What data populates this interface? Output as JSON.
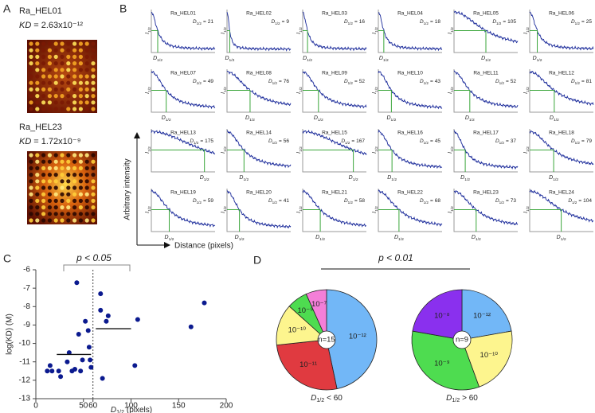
{
  "panel_a": {
    "letter": "A",
    "images": [
      {
        "name": "Ra_HEL01",
        "kd_symbol": "KD",
        "kd_value": "= 2.63x10⁻¹²"
      },
      {
        "name": "Ra_HEL23",
        "kd_symbol": "KD",
        "kd_value": "= 1.72x10⁻⁹"
      }
    ]
  },
  "panel_b": {
    "letter": "B",
    "ylabel": "Arbitrary intensity",
    "xlabel": "Distance (pixels)",
    "i_symbol": "I",
    "d_symbol": "D",
    "sub": "1/2",
    "equals": "=",
    "xlim": [
      0,
      210
    ],
    "plots": [
      {
        "name": "Ra_HEL01",
        "d_half": 21
      },
      {
        "name": "Ra_HEL02",
        "d_half": 9
      },
      {
        "name": "Ra_HEL03",
        "d_half": 16
      },
      {
        "name": "Ra_HEL04",
        "d_half": 18
      },
      {
        "name": "Ra_HEL05",
        "d_half": 105
      },
      {
        "name": "Ra_HEL06",
        "d_half": 25
      },
      {
        "name": "Ra_HEL07",
        "d_half": 49
      },
      {
        "name": "Ra_HEL08",
        "d_half": 76
      },
      {
        "name": "Ra_HEL09",
        "d_half": 52
      },
      {
        "name": "Ra_HEL10",
        "d_half": 43
      },
      {
        "name": "Ra_HEL11",
        "d_half": 52
      },
      {
        "name": "Ra_HEL12",
        "d_half": 81
      },
      {
        "name": "Ra_HEL13",
        "d_half": 175
      },
      {
        "name": "Ra_HEL14",
        "d_half": 56
      },
      {
        "name": "Ra_HEL15",
        "d_half": 167
      },
      {
        "name": "Ra_HEL16",
        "d_half": 45
      },
      {
        "name": "Ra_HEL17",
        "d_half": 37
      },
      {
        "name": "Ra_HEL18",
        "d_half": 79
      },
      {
        "name": "Ra_HEL19",
        "d_half": 59
      },
      {
        "name": "Ra_HEL20",
        "d_half": 41
      },
      {
        "name": "Ra_HEL21",
        "d_half": 58
      },
      {
        "name": "Ra_HEL22",
        "d_half": 68
      },
      {
        "name": "Ra_HEL23",
        "d_half": 73
      },
      {
        "name": "Ra_HEL24",
        "d_half": 104
      }
    ]
  },
  "panel_c": {
    "letter": "C",
    "type": "scatter",
    "title": "p < 0.05",
    "ylabel": "log(KD) (M)",
    "xlabel_symbol": "D",
    "xlabel_sub": "1/2",
    "xlabel_unit": "(pixels)",
    "xlim": [
      0,
      200
    ],
    "ylim": [
      -13,
      -6
    ],
    "xticks": [
      0,
      50,
      60,
      100,
      150,
      200
    ],
    "yticks": [
      -6,
      -7,
      -8,
      -9,
      -10,
      -11,
      -12,
      -13
    ],
    "threshold": 60,
    "color": "#0b1a8f",
    "x": [
      12,
      15,
      17,
      24,
      26,
      33,
      35,
      38,
      41,
      43,
      45,
      47,
      49,
      52,
      55,
      56,
      58,
      57,
      68,
      68,
      70,
      74,
      76,
      104,
      107,
      163,
      177
    ],
    "y": [
      -11.5,
      -11.2,
      -11.5,
      -11.5,
      -11.8,
      -11.0,
      -10.5,
      -11.5,
      -11.4,
      -6.7,
      -9.5,
      -11.5,
      -10.9,
      -8.8,
      -9.3,
      -10.2,
      -11.3,
      -10.9,
      -7.3,
      -8.2,
      -11.9,
      -8.8,
      -8.5,
      -11.2,
      -8.7,
      -9.1,
      -7.8
    ],
    "medians": [
      {
        "x": [
          22,
          58
        ],
        "y": -10.6
      },
      {
        "x": [
          63,
          100
        ],
        "y": -9.2
      }
    ]
  },
  "panel_d": {
    "letter": "D",
    "type": "pie",
    "title": "p < 0.01",
    "pies": [
      {
        "n_label": "n=15",
        "caption_symbol": "D",
        "caption_sub": "1/2",
        "caption_text": "< 60",
        "slices": [
          {
            "label": "10⁻¹²",
            "value": 7,
            "color": "#72b7f7"
          },
          {
            "label": "10⁻¹¹",
            "value": 4,
            "color": "#e03a40"
          },
          {
            "label": "10⁻¹⁰",
            "value": 2,
            "color": "#fdf58e"
          },
          {
            "label": "10⁻⁹",
            "value": 1,
            "color": "#4edc50"
          },
          {
            "label": "10⁻⁷",
            "value": 1,
            "color": "#f47fd8"
          }
        ]
      },
      {
        "n_label": "n=9",
        "caption_symbol": "D",
        "caption_sub": "1/2",
        "caption_text": "> 60",
        "slices": [
          {
            "label": "10⁻¹²",
            "value": 2,
            "color": "#72b7f7"
          },
          {
            "label": "10⁻¹⁰",
            "value": 2,
            "color": "#fdf58e"
          },
          {
            "label": "10⁻⁹",
            "value": 3,
            "color": "#4edc50"
          },
          {
            "label": "10⁻⁸",
            "value": 2,
            "color": "#8a30ee"
          }
        ]
      }
    ]
  }
}
